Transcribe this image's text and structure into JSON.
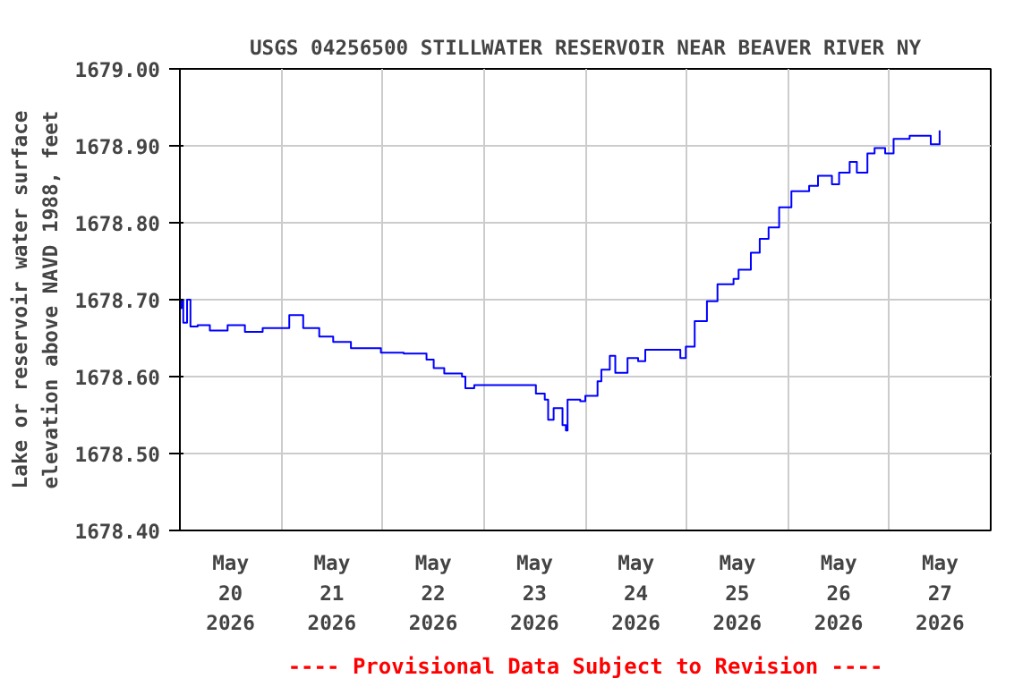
{
  "chart_data": {
    "type": "step",
    "title": "USGS 04256500 STILLWATER RESERVOIR NEAR BEAVER RIVER NY",
    "ylabel": "Lake or reservoir water surface\nelevation above NAVD 1988, feet",
    "annotations": [
      "---- Provisional Data Subject to Revision ----"
    ],
    "x": [
      "2026-05-20T00:00",
      "2026-05-20T00:24",
      "2026-05-20T00:48",
      "2026-05-20T01:42",
      "2026-05-20T02:30",
      "2026-05-20T04:12",
      "2026-05-20T07:06",
      "2026-05-20T11:18",
      "2026-05-20T15:24",
      "2026-05-20T19:36",
      "2026-05-20T23:48",
      "2026-05-21T01:54",
      "2026-05-21T05:12",
      "2026-05-21T09:00",
      "2026-05-21T12:18",
      "2026-05-21T16:30",
      "2026-05-21T23:36",
      "2026-05-22T05:00",
      "2026-05-22T10:24",
      "2026-05-22T12:06",
      "2026-05-22T14:36",
      "2026-05-22T18:48",
      "2026-05-22T19:36",
      "2026-05-22T21:42",
      "2026-05-23T10:12",
      "2026-05-23T12:18",
      "2026-05-23T14:24",
      "2026-05-23T15:12",
      "2026-05-23T16:30",
      "2026-05-23T18:36",
      "2026-05-23T19:24",
      "2026-05-23T19:48",
      "2026-05-23T22:48",
      "2026-05-24T00:00",
      "2026-05-24T02:54",
      "2026-05-24T03:48",
      "2026-05-24T05:48",
      "2026-05-24T07:06",
      "2026-05-24T10:00",
      "2026-05-24T12:30",
      "2026-05-24T14:12",
      "2026-05-24T19:36",
      "2026-05-24T22:30",
      "2026-05-24T23:48",
      "2026-05-25T01:54",
      "2026-05-25T04:48",
      "2026-05-25T07:18",
      "2026-05-25T11:06",
      "2026-05-25T12:18",
      "2026-05-25T15:12",
      "2026-05-25T17:18",
      "2026-05-25T19:24",
      "2026-05-25T21:54",
      "2026-05-26T00:48",
      "2026-05-26T05:00",
      "2026-05-26T07:06",
      "2026-05-26T10:24",
      "2026-05-26T12:06",
      "2026-05-26T14:36",
      "2026-05-26T16:18",
      "2026-05-26T18:48",
      "2026-05-26T20:30",
      "2026-05-26T23:00",
      "2026-05-27T01:00",
      "2026-05-27T04:48",
      "2026-05-27T09:00",
      "2026-05-27T09:48",
      "2026-05-27T11:30",
      "2026-05-27T11:54"
    ],
    "series": [
      {
        "color": "#0000ff",
        "values": [
          1678.689,
          1678.7,
          1678.67,
          1678.7,
          1678.665,
          1678.667,
          1678.66,
          1678.667,
          1678.658,
          1678.663,
          1678.663,
          1678.68,
          1678.663,
          1678.652,
          1678.645,
          1678.637,
          1678.631,
          1678.63,
          1678.622,
          1678.611,
          1678.604,
          1678.6,
          1678.585,
          1678.589,
          1678.589,
          1678.578,
          1678.57,
          1678.544,
          1678.559,
          1678.537,
          1678.53,
          1678.57,
          1678.568,
          1678.575,
          1678.594,
          1678.609,
          1678.627,
          1678.605,
          1678.624,
          1678.62,
          1678.635,
          1678.635,
          1678.624,
          1678.639,
          1678.672,
          1678.698,
          1678.72,
          1678.727,
          1678.739,
          1678.761,
          1678.779,
          1678.794,
          1678.82,
          1678.841,
          1678.848,
          1678.861,
          1678.85,
          1678.865,
          1678.879,
          1678.865,
          1678.89,
          1678.897,
          1678.89,
          1678.909,
          1678.913,
          1678.913,
          1678.902,
          1678.902,
          1678.92
        ]
      }
    ],
    "xlim": [
      "2026-05-20T00:00",
      "2026-05-28T00:00"
    ],
    "xticks": [
      {
        "value": "2026-05-20T12:00",
        "label": "May\n20\n2026"
      },
      {
        "value": "2026-05-21T12:00",
        "label": "May\n21\n2026"
      },
      {
        "value": "2026-05-22T12:00",
        "label": "May\n22\n2026"
      },
      {
        "value": "2026-05-23T12:00",
        "label": "May\n23\n2026"
      },
      {
        "value": "2026-05-24T12:00",
        "label": "May\n24\n2026"
      },
      {
        "value": "2026-05-25T12:00",
        "label": "May\n25\n2026"
      },
      {
        "value": "2026-05-26T12:00",
        "label": "May\n26\n2026"
      },
      {
        "value": "2026-05-27T12:00",
        "label": "May\n27\n2026"
      },
      {
        "value": "2026-05-21T00:00",
        "label": null
      },
      {
        "value": "2026-05-22T00:00",
        "label": null
      },
      {
        "value": "2026-05-23T00:00",
        "label": null
      },
      {
        "value": "2026-05-24T00:00",
        "label": null
      },
      {
        "value": "2026-05-25T00:00",
        "label": null
      },
      {
        "value": "2026-05-26T00:00",
        "label": null
      },
      {
        "value": "2026-05-27T00:00",
        "label": null
      }
    ],
    "ylim": [
      1678.4,
      1679.0
    ],
    "yticks": [
      {
        "value": 1678.4,
        "label": "1678.40"
      },
      {
        "value": 1678.5,
        "label": "1678.50"
      },
      {
        "value": 1678.6,
        "label": "1678.60"
      },
      {
        "value": 1678.7,
        "label": "1678.70"
      },
      {
        "value": 1678.8,
        "label": "1678.80"
      },
      {
        "value": 1678.9,
        "label": "1678.90"
      },
      {
        "value": 1679.0,
        "label": "1679.00"
      }
    ],
    "grid": true,
    "line_style": "solid"
  }
}
